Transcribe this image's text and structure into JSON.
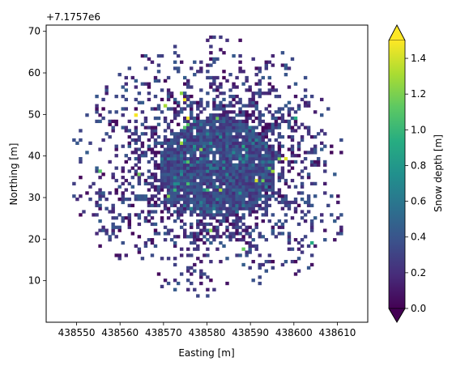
{
  "chart_data": {
    "type": "heatmap",
    "title": "",
    "xlabel": "Easting [m]",
    "ylabel": "Northing [m]",
    "y_offset_label": "+7.1757e6",
    "xlim": [
      438543,
      438617
    ],
    "ylim": [
      0,
      71.5
    ],
    "x_ticks": [
      438550,
      438560,
      438570,
      438580,
      438590,
      438600,
      438610
    ],
    "y_ticks": [
      10,
      20,
      30,
      40,
      50,
      60,
      70
    ],
    "grid": false,
    "colormap": "viridis",
    "colorbar": {
      "label": "Snow depth [m]",
      "range": [
        0,
        1.5
      ],
      "ticks": [
        0.0,
        0.2,
        0.4,
        0.6,
        0.8,
        1.0,
        1.2,
        1.4
      ],
      "tick_labels": [
        "0.0",
        "0.2",
        "0.4",
        "0.6",
        "0.8",
        "1.0",
        "1.2",
        "1.4"
      ],
      "extend": "both"
    },
    "field": {
      "center_easting": 438582,
      "center_northing": 37,
      "core_radius_m": 13,
      "extent_radius_m": 30,
      "typical_depth_m": 0.3,
      "max_depth_m": 1.5
    },
    "colors": {
      "viridis": [
        "#440154",
        "#472c7a",
        "#3b518b",
        "#2c718e",
        "#21908d",
        "#27ad81",
        "#5cc863",
        "#aadc32",
        "#fde725"
      ]
    }
  }
}
